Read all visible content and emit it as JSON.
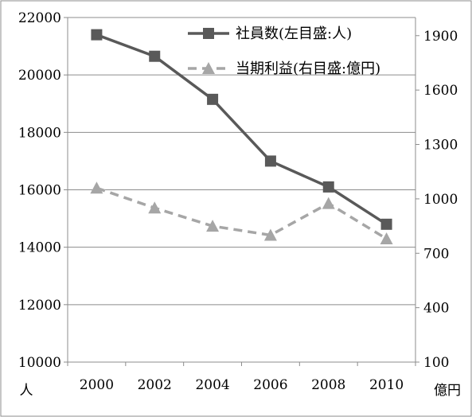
{
  "chart_data": {
    "type": "line",
    "x": [
      2000,
      2002,
      2004,
      2006,
      2008,
      2010
    ],
    "x_tick_labels": [
      "2000",
      "2002",
      "2004",
      "2006",
      "2008",
      "2010"
    ],
    "left_axis": {
      "unit_label": "人",
      "ylim": [
        10000,
        22000
      ],
      "ticks": [
        "10000",
        "12000",
        "14000",
        "16000",
        "18000",
        "20000",
        "22000"
      ]
    },
    "right_axis": {
      "unit_label": "億円",
      "ylim": [
        100,
        2000
      ],
      "ticks": [
        "100",
        "400",
        "700",
        "1000",
        "1300",
        "1600",
        "1900"
      ]
    },
    "series": [
      {
        "name": "社員数(左目盛:人)",
        "axis": "left",
        "marker": "square",
        "line_style": "solid",
        "color": "#595959",
        "values": [
          21400,
          20650,
          19150,
          17000,
          16100,
          14800
        ]
      },
      {
        "name": "当期利益(右目盛:億円)",
        "axis": "right",
        "marker": "triangle",
        "line_style": "dashed",
        "color": "#a6a6a6",
        "values": [
          1060,
          950,
          850,
          800,
          975,
          780
        ]
      }
    ],
    "grid": true,
    "legend_position": "top-right"
  }
}
